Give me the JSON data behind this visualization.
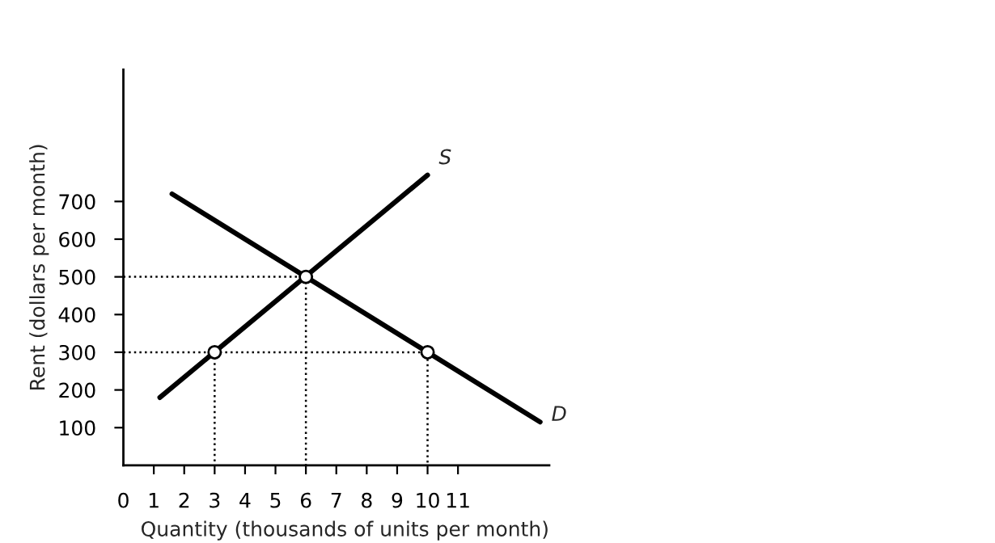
{
  "chart_data": {
    "type": "line",
    "xlabel": "Quantity (thousands of units per month)",
    "ylabel": "Rent (dollars per month)",
    "xlim": [
      0,
      14
    ],
    "ylim": [
      0,
      1050
    ],
    "xticks": [
      0,
      1,
      2,
      3,
      4,
      5,
      6,
      7,
      8,
      9,
      10,
      11
    ],
    "yticks": [
      100,
      200,
      300,
      400,
      500,
      600,
      700
    ],
    "grid": false,
    "legend": false,
    "series": [
      {
        "name": "S",
        "color": "#000000",
        "x": [
          1.2,
          10
        ],
        "values": [
          180,
          770
        ]
      },
      {
        "name": "D",
        "color": "#000000",
        "x": [
          1.6,
          13.7
        ],
        "values": [
          720,
          115
        ]
      },
      {
        "color": "#000000",
        "line_style": "dotted",
        "x": [
          0,
          6,
          6
        ],
        "values": [
          500,
          500,
          0
        ]
      },
      {
        "color": "#000000",
        "line_style": "dotted",
        "x": [
          0,
          10,
          10
        ],
        "values": [
          300,
          300,
          0
        ]
      },
      {
        "color": "#000000",
        "line_style": "dotted",
        "x": [
          3,
          3
        ],
        "values": [
          300,
          0
        ]
      },
      {
        "type": "scatter",
        "marker": "circle",
        "color": "#000000",
        "x": [
          3,
          6,
          10
        ],
        "values": [
          300,
          500,
          300
        ]
      }
    ]
  }
}
